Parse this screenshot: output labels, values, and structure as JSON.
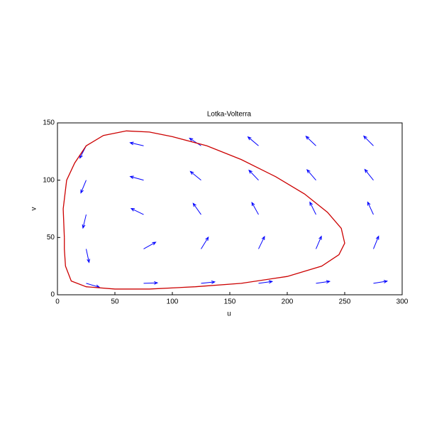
{
  "chart_data": {
    "type": "quiver",
    "title": "Lotka-Volterra",
    "xlabel": "u",
    "ylabel": "v",
    "xlim": [
      0,
      300
    ],
    "ylim": [
      0,
      150
    ],
    "xticks": [
      0,
      50,
      100,
      150,
      200,
      250,
      300
    ],
    "yticks": [
      0,
      50,
      100,
      150
    ],
    "quiver": {
      "color": "#0000ff",
      "x": [
        25,
        25,
        25,
        25,
        25,
        75,
        75,
        75,
        75,
        75,
        125,
        125,
        125,
        125,
        125,
        175,
        175,
        175,
        175,
        175,
        225,
        225,
        225,
        225,
        225,
        275,
        275,
        275,
        275,
        275
      ],
      "y": [
        10,
        40,
        70,
        100,
        130,
        10,
        40,
        70,
        100,
        130,
        10,
        40,
        70,
        100,
        130,
        10,
        40,
        70,
        100,
        130,
        10,
        40,
        70,
        100,
        130,
        10,
        40,
        70,
        100,
        130
      ],
      "du": [
        11.5,
        2.5,
        -2.8,
        -4.6,
        -5.5,
        12.0,
        10.5,
        -10.8,
        -11.6,
        -11.7,
        11.9,
        6.3,
        -6.9,
        -9.3,
        -10.0,
        11.9,
        5.2,
        -5.8,
        -8.3,
        -9.2,
        11.9,
        4.7,
        -5.3,
        -7.8,
        -8.7,
        11.9,
        4.5,
        -5.0,
        -7.5,
        -8.4
      ],
      "dv": [
        -3.4,
        -11.7,
        -11.7,
        -11.1,
        -10.7,
        0.4,
        5.9,
        5.3,
        3.2,
        2.7,
        1.2,
        10.2,
        9.8,
        7.6,
        6.6,
        1.6,
        10.8,
        10.5,
        8.7,
        7.8,
        1.7,
        11.0,
        10.8,
        9.1,
        8.3,
        1.9,
        11.1,
        10.9,
        9.4,
        8.5
      ]
    },
    "series": [
      {
        "color": "#cc0000",
        "x": [
          6,
          5,
          8,
          15,
          25,
          40,
          60,
          80,
          100,
          130,
          160,
          190,
          215,
          235,
          247,
          250,
          245,
          230,
          200,
          160,
          120,
          80,
          50,
          25,
          12,
          7,
          6,
          6
        ],
        "values": [
          50,
          75,
          100,
          115,
          130,
          139,
          143,
          142,
          138,
          130,
          118,
          103,
          88,
          72,
          58,
          45,
          35,
          25,
          16,
          10,
          7,
          5,
          5,
          7,
          12,
          25,
          40,
          50
        ]
      }
    ]
  }
}
